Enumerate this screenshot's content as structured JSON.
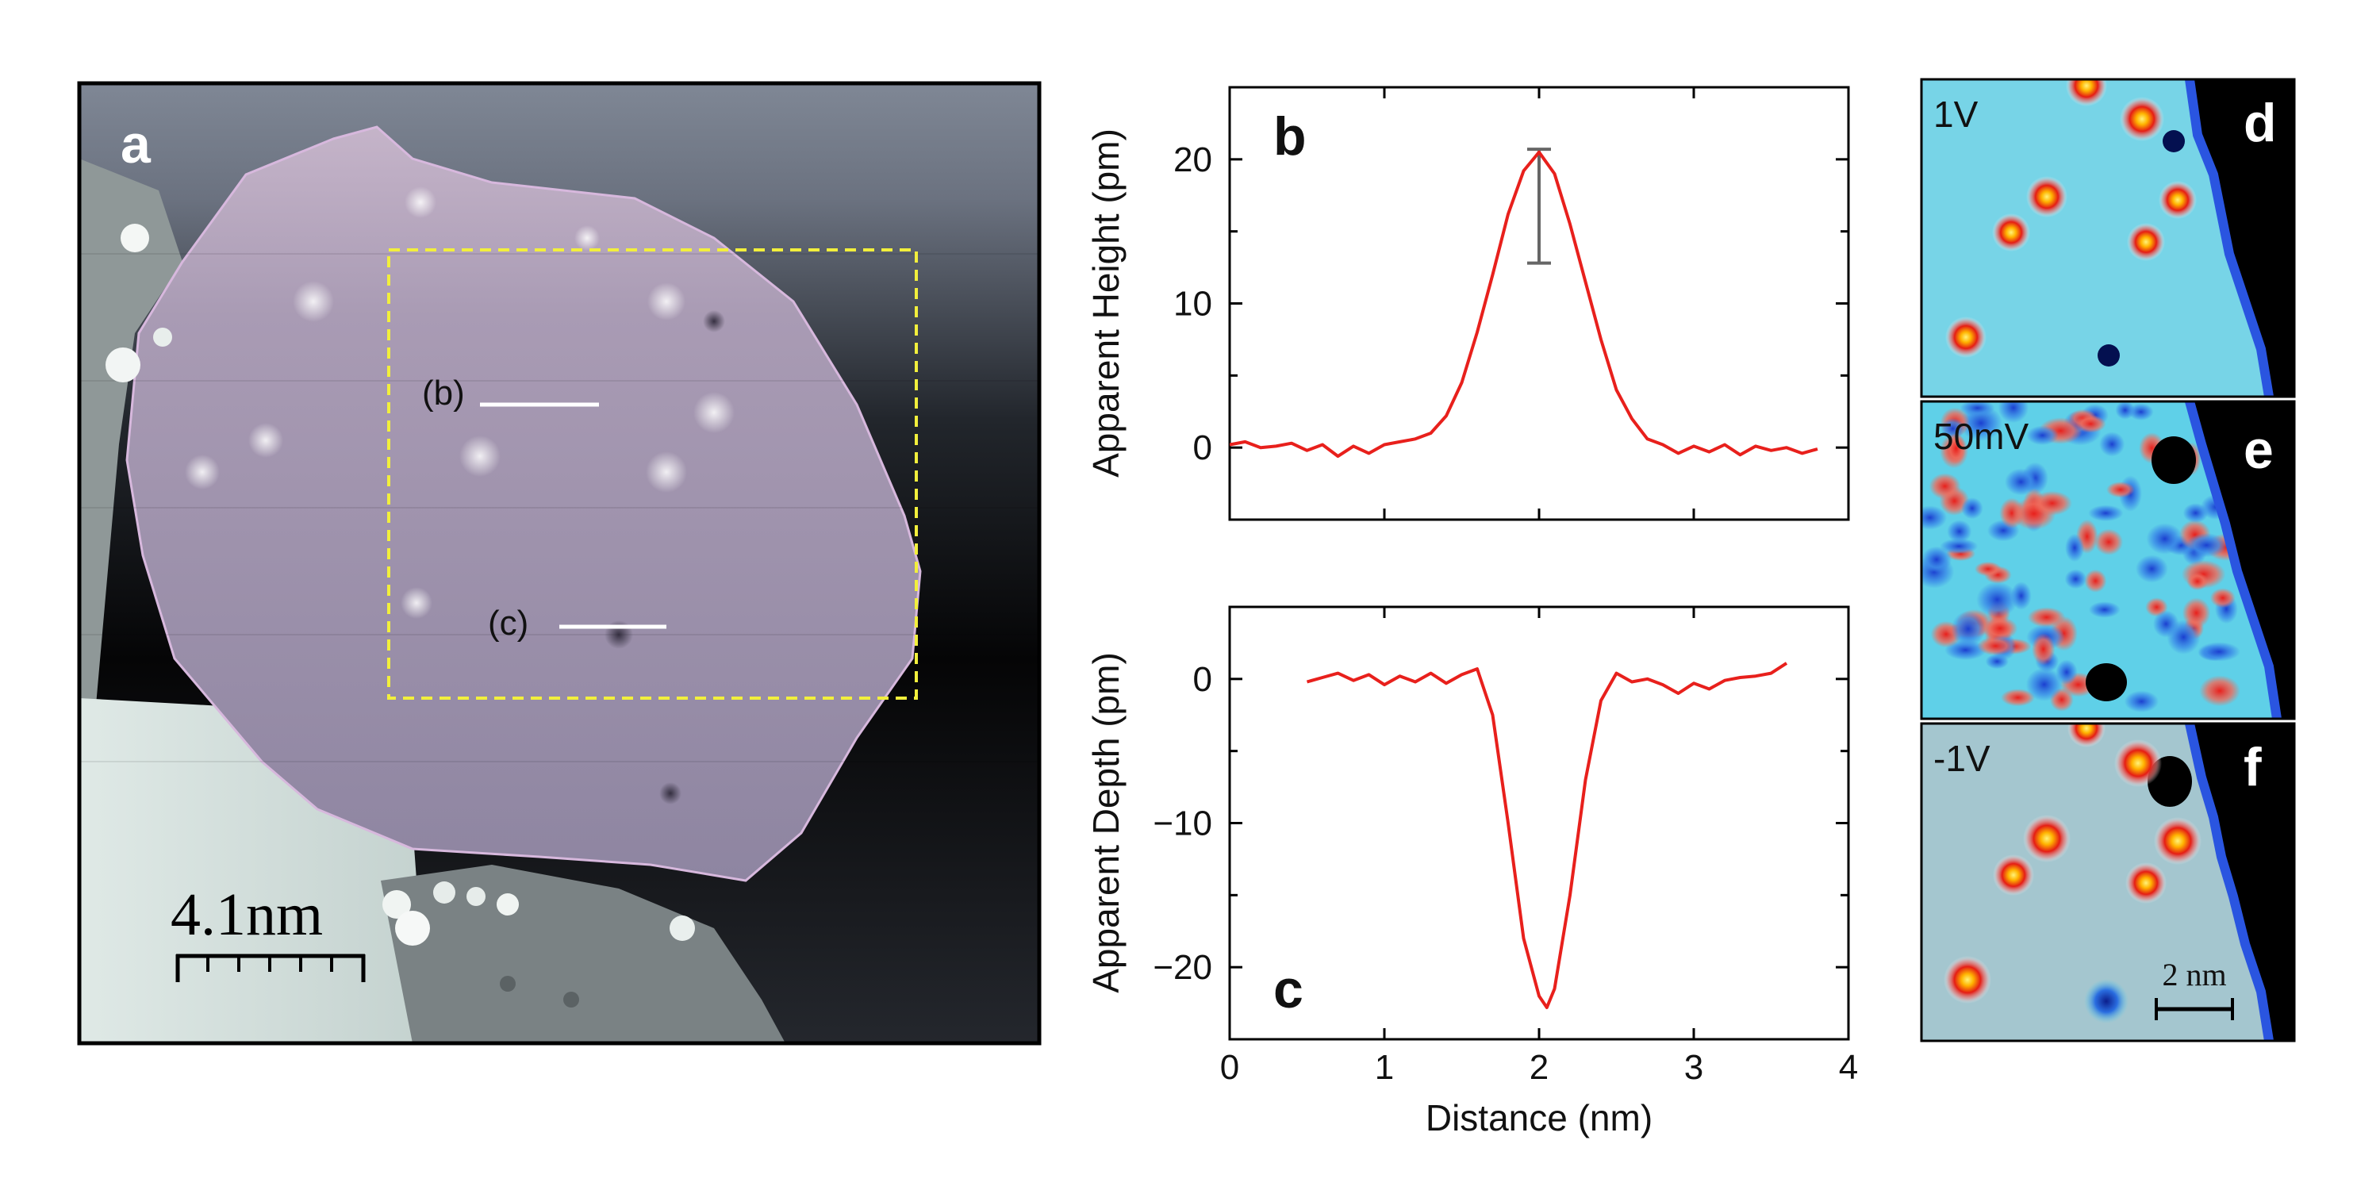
{
  "panels": {
    "a": {
      "letter": "a",
      "line_labels": [
        "(b)",
        "(c)"
      ],
      "scale_bar": "4.1nm"
    },
    "b": {
      "letter": "b"
    },
    "c": {
      "letter": "c"
    },
    "d": {
      "letter": "d",
      "voltage": "1V"
    },
    "e": {
      "letter": "e",
      "voltage": "50mV"
    },
    "f": {
      "letter": "f",
      "voltage": "-1V",
      "scale_bar": "2 nm"
    }
  },
  "colors": {
    "profile_line": "#e8201c",
    "error_bar": "#666666",
    "dashed_box": "#f2ef3c",
    "map_background": "#5fd0e8"
  },
  "chart_data": [
    {
      "type": "line",
      "panel": "b",
      "xlim": [
        0,
        4
      ],
      "ylim": [
        -5,
        25
      ],
      "ylabel": "Apparent Height (pm)",
      "yticks": [
        0,
        10,
        20
      ],
      "error_bar": {
        "x": 2.0,
        "y_low": 12.8,
        "y_high": 20.7
      },
      "series": [
        {
          "x": [
            0.0,
            0.1,
            0.2,
            0.3,
            0.4,
            0.5,
            0.6,
            0.7,
            0.8,
            0.9,
            1.0,
            1.1,
            1.2,
            1.3,
            1.4,
            1.5,
            1.6,
            1.7,
            1.8,
            1.9,
            2.0,
            2.1,
            2.2,
            2.3,
            2.4,
            2.5,
            2.6,
            2.7,
            2.8,
            2.9,
            3.0,
            3.1,
            3.2,
            3.3,
            3.4,
            3.5,
            3.6,
            3.7,
            3.8
          ],
          "y": [
            0.2,
            0.4,
            0.0,
            0.1,
            0.3,
            -0.2,
            0.2,
            -0.6,
            0.1,
            -0.4,
            0.2,
            0.4,
            0.6,
            1.0,
            2.2,
            4.5,
            8.0,
            12.0,
            16.2,
            19.2,
            20.5,
            19.0,
            15.5,
            11.5,
            7.5,
            4.0,
            2.0,
            0.6,
            0.2,
            -0.4,
            0.1,
            -0.3,
            0.2,
            -0.5,
            0.1,
            -0.2,
            0.0,
            -0.4,
            -0.1
          ]
        }
      ]
    },
    {
      "type": "line",
      "panel": "c",
      "xlim": [
        0,
        4
      ],
      "ylim": [
        -25,
        5
      ],
      "xlabel": "Distance (nm)",
      "ylabel": "Apparent Depth (pm)",
      "xticks": [
        0,
        1,
        2,
        3,
        4
      ],
      "yticks": [
        0,
        -10,
        -20
      ],
      "series": [
        {
          "x": [
            0.5,
            0.6,
            0.7,
            0.8,
            0.9,
            1.0,
            1.1,
            1.2,
            1.3,
            1.4,
            1.5,
            1.6,
            1.7,
            1.8,
            1.9,
            2.0,
            2.05,
            2.1,
            2.2,
            2.3,
            2.4,
            2.5,
            2.6,
            2.7,
            2.8,
            2.9,
            3.0,
            3.1,
            3.2,
            3.3,
            3.4,
            3.5,
            3.6
          ],
          "y": [
            -0.2,
            0.1,
            0.4,
            -0.1,
            0.3,
            -0.4,
            0.2,
            -0.2,
            0.4,
            -0.3,
            0.3,
            0.7,
            -2.5,
            -10.0,
            -18.0,
            -22.0,
            -22.8,
            -21.5,
            -15.0,
            -7.0,
            -1.5,
            0.4,
            -0.2,
            0.0,
            -0.4,
            -1.0,
            -0.3,
            -0.7,
            -0.1,
            0.1,
            0.2,
            0.4,
            1.1
          ]
        }
      ]
    }
  ]
}
